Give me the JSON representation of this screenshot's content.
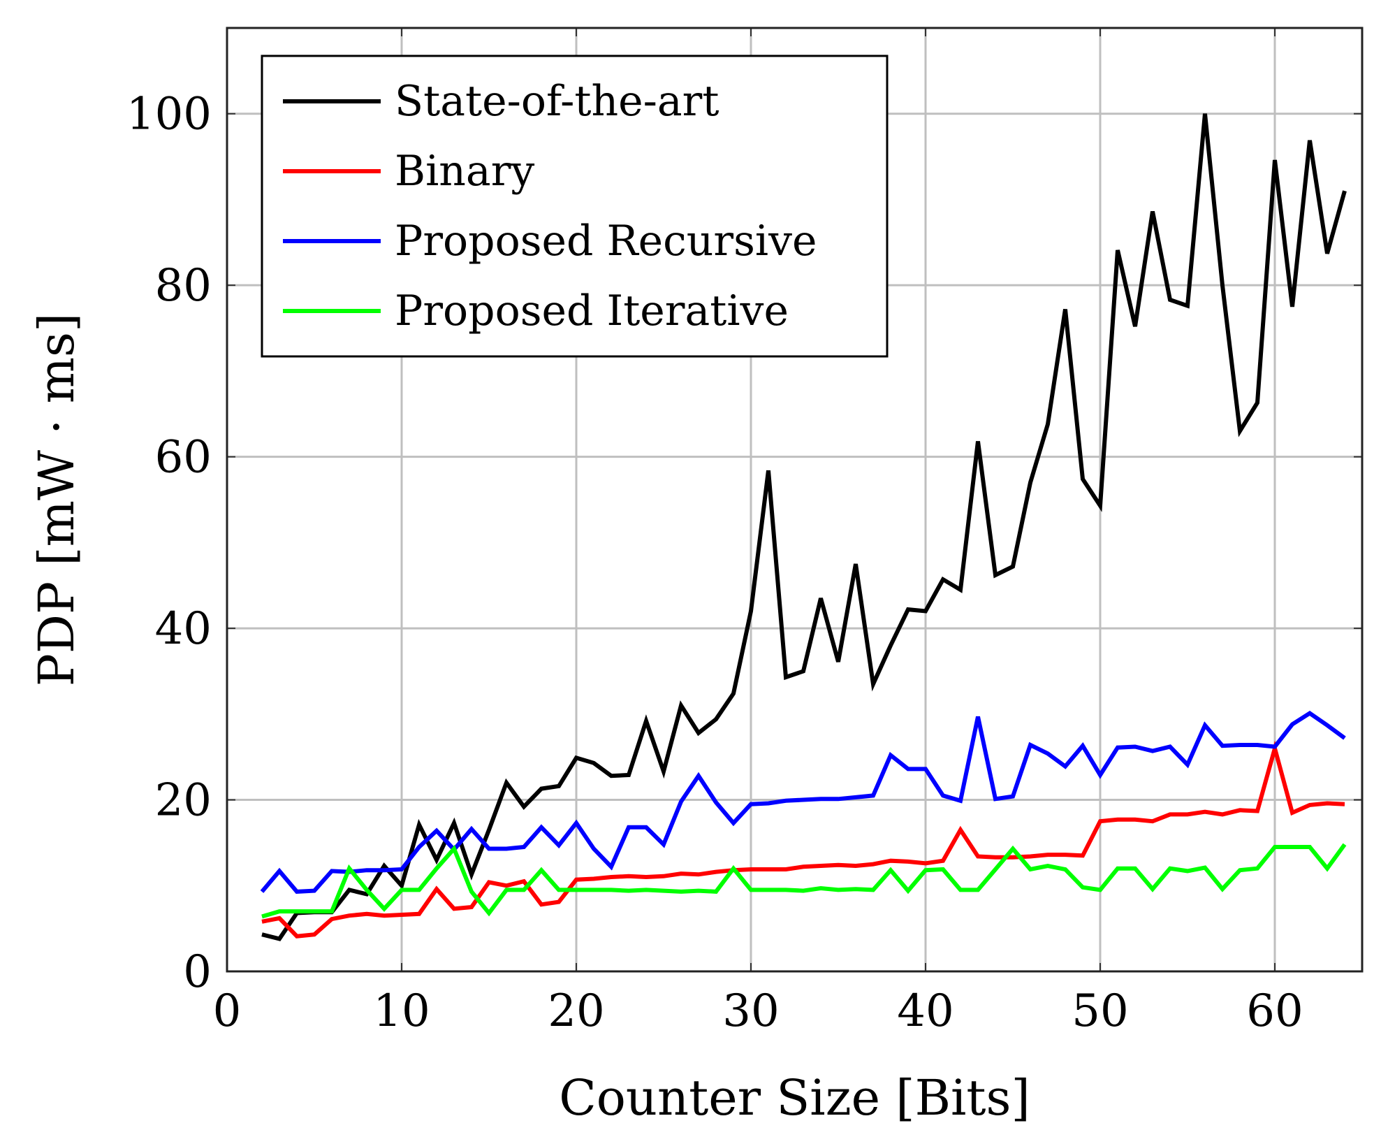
{
  "chart_data": {
    "type": "line",
    "title": "",
    "xlabel": "Counter Size [Bits]",
    "ylabel": "PDP [mW · ms]",
    "xlim": [
      0,
      65
    ],
    "ylim": [
      0,
      110
    ],
    "x_ticks": [
      0,
      10,
      20,
      30,
      40,
      50,
      60
    ],
    "y_ticks": [
      0,
      20,
      40,
      60,
      80,
      100
    ],
    "grid": true,
    "legend_position": "top-left",
    "x": [
      2,
      3,
      4,
      5,
      6,
      7,
      8,
      9,
      10,
      11,
      12,
      13,
      14,
      15,
      16,
      17,
      18,
      19,
      20,
      21,
      22,
      23,
      24,
      25,
      26,
      27,
      28,
      29,
      30,
      31,
      32,
      33,
      34,
      35,
      36,
      37,
      38,
      39,
      40,
      41,
      42,
      43,
      44,
      45,
      46,
      47,
      48,
      49,
      50,
      51,
      52,
      53,
      54,
      55,
      56,
      57,
      58,
      59,
      60,
      61,
      62,
      63,
      64
    ],
    "series": [
      {
        "name": "State-of-the-art",
        "color": "#000000",
        "values": [
          4.3,
          3.8,
          6.8,
          6.9,
          6.9,
          9.5,
          9.0,
          12.3,
          10.0,
          17.1,
          13.0,
          17.3,
          11.3,
          16.5,
          22.0,
          19.2,
          21.3,
          21.6,
          24.9,
          24.3,
          22.8,
          22.9,
          29.2,
          23.3,
          31.0,
          27.8,
          29.4,
          32.4,
          42.0,
          58.4,
          34.3,
          35.0,
          43.5,
          36.1,
          47.5,
          33.5,
          38.0,
          42.2,
          42.0,
          45.7,
          44.5,
          61.8,
          46.2,
          47.2,
          57.0,
          63.8,
          77.2,
          57.4,
          54.3,
          84.1,
          75.2,
          88.6,
          78.3,
          77.6,
          100.0,
          80.0,
          63.0,
          66.3,
          94.6,
          77.5,
          96.9,
          83.7,
          91.0
        ]
      },
      {
        "name": "Binary",
        "color": "#ff0000",
        "values": [
          5.8,
          6.2,
          4.1,
          4.3,
          6.1,
          6.5,
          6.7,
          6.5,
          6.6,
          6.7,
          9.6,
          7.3,
          7.5,
          10.4,
          10.0,
          10.5,
          7.8,
          8.1,
          10.7,
          10.8,
          11.0,
          11.1,
          11.0,
          11.1,
          11.4,
          11.3,
          11.6,
          11.8,
          11.9,
          11.9,
          11.9,
          12.2,
          12.3,
          12.4,
          12.3,
          12.5,
          12.9,
          12.8,
          12.6,
          12.9,
          16.5,
          13.4,
          13.3,
          13.3,
          13.4,
          13.6,
          13.6,
          13.5,
          17.5,
          17.7,
          17.7,
          17.5,
          18.3,
          18.3,
          18.6,
          18.3,
          18.8,
          18.7,
          26.0,
          18.5,
          19.4,
          19.6,
          19.5
        ]
      },
      {
        "name": "Proposed Recursive",
        "color": "#0000ff",
        "values": [
          9.3,
          11.7,
          9.3,
          9.4,
          11.7,
          11.6,
          11.8,
          11.8,
          11.9,
          14.5,
          16.4,
          14.2,
          16.6,
          14.3,
          14.3,
          14.5,
          16.8,
          14.7,
          17.3,
          14.3,
          12.2,
          16.8,
          16.8,
          14.8,
          19.8,
          22.8,
          19.7,
          17.3,
          19.5,
          19.6,
          19.9,
          20.0,
          20.1,
          20.1,
          20.3,
          20.5,
          25.2,
          23.6,
          23.6,
          20.5,
          19.9,
          29.7,
          20.1,
          20.4,
          26.4,
          25.4,
          23.9,
          26.3,
          22.9,
          26.1,
          26.2,
          25.7,
          26.2,
          24.1,
          28.7,
          26.3,
          26.4,
          26.4,
          26.2,
          28.8,
          30.1,
          28.7,
          27.2
        ]
      },
      {
        "name": "Proposed Iterative",
        "color": "#00ff00",
        "values": [
          6.4,
          7.0,
          7.0,
          7.0,
          7.0,
          12.0,
          9.5,
          7.3,
          9.5,
          9.5,
          12.0,
          14.3,
          9.3,
          6.8,
          9.5,
          9.5,
          11.8,
          9.5,
          9.5,
          9.5,
          9.5,
          9.4,
          9.5,
          9.4,
          9.3,
          9.4,
          9.3,
          12.0,
          9.5,
          9.5,
          9.5,
          9.4,
          9.7,
          9.5,
          9.6,
          9.5,
          11.8,
          9.4,
          11.8,
          11.9,
          9.5,
          9.5,
          11.9,
          14.3,
          11.9,
          12.3,
          11.9,
          9.8,
          9.5,
          12.0,
          12.0,
          9.6,
          12.0,
          11.7,
          12.1,
          9.6,
          11.8,
          12.0,
          14.5,
          14.5,
          14.5,
          12.0,
          14.8
        ]
      }
    ]
  }
}
